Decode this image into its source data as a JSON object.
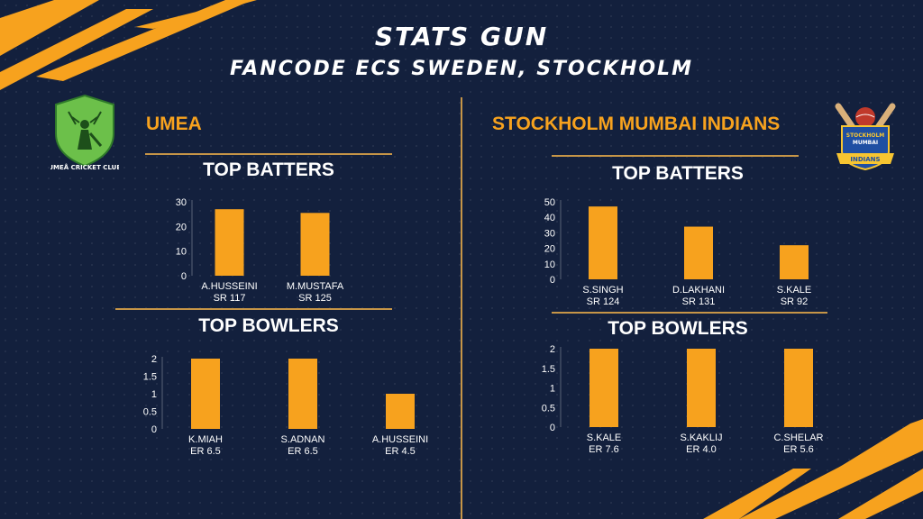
{
  "header": {
    "title": "STATS GUN",
    "subtitle": "FANCODE ECS SWEDEN, STOCKHOLM"
  },
  "colors": {
    "background": "#13203d",
    "accent": "#f7a21e",
    "rule": "#c69547",
    "text": "#ffffff"
  },
  "teams": [
    {
      "name": "UMEA",
      "logo_text": "UMEÅ CRICKET CLUB",
      "batters_title": "TOP BATTERS",
      "bowlers_title": "TOP BOWLERS"
    },
    {
      "name": "STOCKHOLM MUMBAI INDIANS",
      "logo_text": "STOCKHOLM MUMBAI INDIANS",
      "logo_ribbon": "INDIANS",
      "batters_title": "TOP BATTERS",
      "bowlers_title": "TOP BOWLERS"
    }
  ],
  "chart_data": [
    {
      "type": "bar",
      "team": "UMEA",
      "section": "TOP BATTERS",
      "categories": [
        "A.HUSSEINI",
        "M.MUSTAFA"
      ],
      "sublabels": [
        "SR 117",
        "SR 125"
      ],
      "values": [
        27,
        25.5
      ],
      "yticks": [
        0,
        10,
        20,
        30
      ],
      "ylim": [
        0,
        30
      ]
    },
    {
      "type": "bar",
      "team": "UMEA",
      "section": "TOP BOWLERS",
      "categories": [
        "K.MIAH",
        "S.ADNAN",
        "A.HUSSEINI"
      ],
      "sublabels": [
        "ER 6.5",
        "ER 6.5",
        "ER 4.5"
      ],
      "values": [
        2,
        2,
        1
      ],
      "yticks": [
        0,
        0.5,
        1,
        1.5,
        2
      ],
      "ylim": [
        0,
        2
      ]
    },
    {
      "type": "bar",
      "team": "STOCKHOLM MUMBAI INDIANS",
      "section": "TOP BATTERS",
      "categories": [
        "S.SINGH",
        "D.LAKHANI",
        "S.KALE"
      ],
      "sublabels": [
        "SR 124",
        "SR 131",
        "SR 92"
      ],
      "values": [
        47,
        34,
        22
      ],
      "yticks": [
        0,
        10,
        20,
        30,
        40,
        50
      ],
      "ylim": [
        0,
        50
      ]
    },
    {
      "type": "bar",
      "team": "STOCKHOLM MUMBAI INDIANS",
      "section": "TOP BOWLERS",
      "categories": [
        "S.KALE",
        "S.KAKLIJ",
        "C.SHELAR"
      ],
      "sublabels": [
        "ER 7.6",
        "ER 4.0",
        "ER 5.6"
      ],
      "values": [
        2,
        2,
        2
      ],
      "yticks": [
        0,
        0.5,
        1,
        1.5,
        2
      ],
      "ylim": [
        0,
        2
      ]
    }
  ]
}
